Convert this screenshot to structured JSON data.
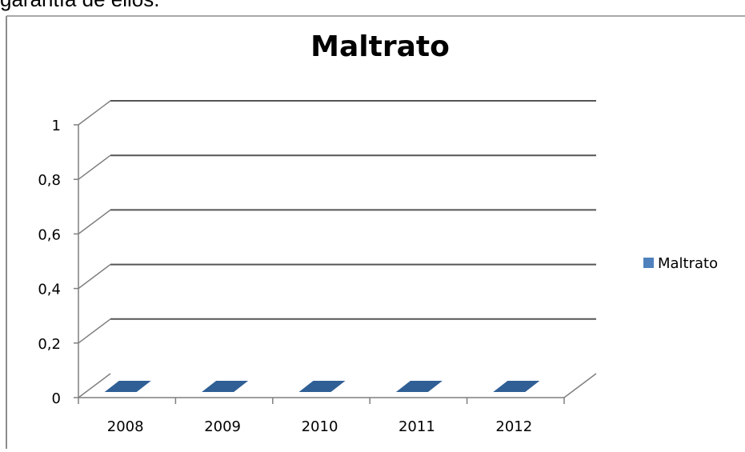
{
  "top_fragment": "garantía de ellos.",
  "chart_data": {
    "type": "bar",
    "title": "Maltrato",
    "categories": [
      "2008",
      "2009",
      "2010",
      "2011",
      "2012"
    ],
    "series": [
      {
        "name": "Maltrato",
        "values": [
          0,
          0,
          0,
          0,
          0
        ]
      }
    ],
    "ylim": [
      0,
      1
    ],
    "yticks": [
      "0",
      "0,2",
      "0,4",
      "0,6",
      "0,8",
      "1"
    ],
    "grid": true,
    "three_d": true,
    "legend_position": "right",
    "colors": {
      "series": "#4f81bd",
      "series_dark": "#2f5f95",
      "grid": "#7f7f7f",
      "axis": "#7f7f7f"
    }
  }
}
